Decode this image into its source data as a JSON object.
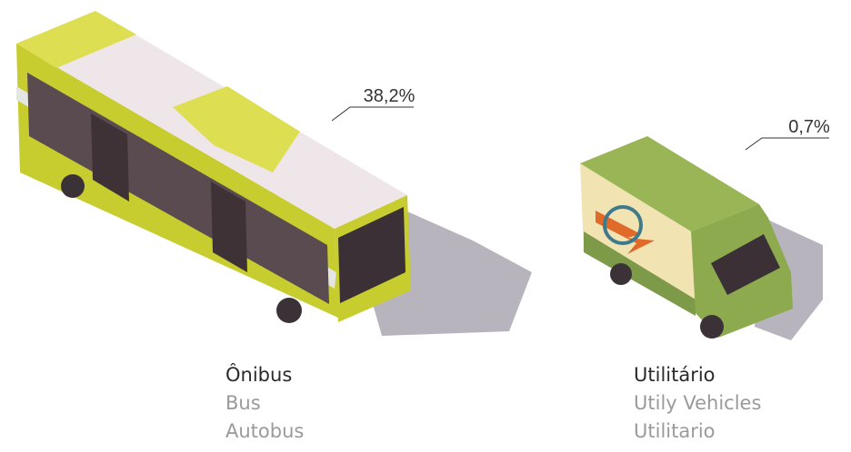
{
  "vehicles": [
    {
      "share": "38,2%",
      "name_pt": "Ônibus",
      "name_en": "Bus",
      "name_es": "Autobus"
    },
    {
      "share": "0,7%",
      "name_pt": "Utilitário",
      "name_en": "Utily Vehicles",
      "name_es": "Utilitario"
    }
  ]
}
